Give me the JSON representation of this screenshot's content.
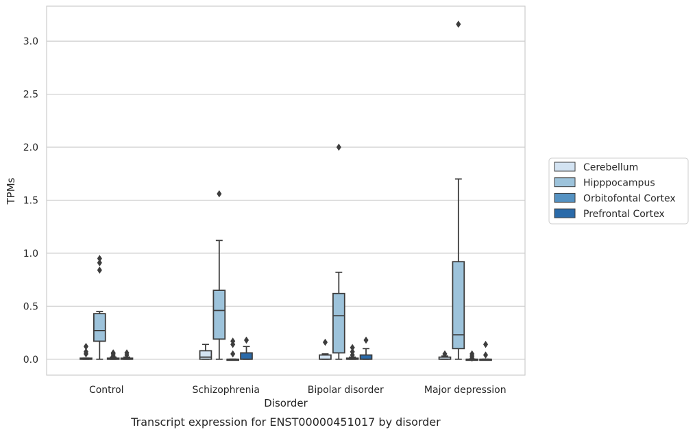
{
  "chart_data": {
    "type": "box",
    "caption": "Transcript expression for ENST00000451017 by disorder",
    "xlabel": "Disorder",
    "ylabel": "TPMs",
    "ylim": [
      -0.15,
      3.33
    ],
    "yticks": [
      0.0,
      0.5,
      1.0,
      1.5,
      2.0,
      2.5,
      3.0
    ],
    "ytick_labels": [
      "0.0",
      "0.5",
      "1.0",
      "1.5",
      "2.0",
      "2.5",
      "3.0"
    ],
    "grid": "horizontal",
    "legend_position": "right",
    "categories": [
      "Control",
      "Schizophrenia",
      "Bipolar disorder",
      "Major depression"
    ],
    "series": [
      {
        "name": "Cerebellum",
        "color": "#d3e3f2",
        "boxes": [
          {
            "q1": 0.0,
            "median": 0.0,
            "q3": 0.01,
            "whisker_low": 0.0,
            "whisker_high": 0.01,
            "outliers": [
              0.05,
              0.07,
              0.12
            ]
          },
          {
            "q1": 0.0,
            "median": 0.02,
            "q3": 0.08,
            "whisker_low": 0.0,
            "whisker_high": 0.14,
            "outliers": []
          },
          {
            "q1": 0.0,
            "median": 0.0,
            "q3": 0.04,
            "whisker_low": 0.0,
            "whisker_high": 0.05,
            "outliers": [
              0.16
            ]
          },
          {
            "q1": 0.0,
            "median": 0.0,
            "q3": 0.02,
            "whisker_low": 0.0,
            "whisker_high": 0.03,
            "outliers": [
              0.05
            ]
          }
        ]
      },
      {
        "name": "Hipppocampus",
        "color": "#9dc3db",
        "boxes": [
          {
            "q1": 0.17,
            "median": 0.27,
            "q3": 0.43,
            "whisker_low": 0.0,
            "whisker_high": 0.45,
            "outliers": [
              0.84,
              0.91,
              0.95
            ]
          },
          {
            "q1": 0.19,
            "median": 0.46,
            "q3": 0.65,
            "whisker_low": 0.0,
            "whisker_high": 1.12,
            "outliers": [
              1.56
            ]
          },
          {
            "q1": 0.06,
            "median": 0.41,
            "q3": 0.62,
            "whisker_low": 0.0,
            "whisker_high": 0.82,
            "outliers": [
              2.0
            ]
          },
          {
            "q1": 0.1,
            "median": 0.23,
            "q3": 0.92,
            "whisker_low": 0.0,
            "whisker_high": 1.7,
            "outliers": [
              3.16
            ]
          }
        ]
      },
      {
        "name": "Orbitofontal Cortex",
        "color": "#5592c2",
        "boxes": [
          {
            "q1": 0.0,
            "median": 0.0,
            "q3": 0.01,
            "whisker_low": 0.0,
            "whisker_high": 0.02,
            "outliers": [
              0.03,
              0.05,
              0.06
            ]
          },
          {
            "q1": 0.0,
            "median": 0.0,
            "q3": 0.0,
            "whisker_low": 0.0,
            "whisker_high": 0.0,
            "outliers": [
              0.05,
              0.14,
              0.17
            ]
          },
          {
            "q1": 0.0,
            "median": 0.0,
            "q3": 0.01,
            "whisker_low": 0.0,
            "whisker_high": 0.02,
            "outliers": [
              0.04,
              0.07,
              0.11
            ]
          },
          {
            "q1": 0.0,
            "median": 0.0,
            "q3": 0.0,
            "whisker_low": 0.0,
            "whisker_high": 0.0,
            "outliers": [
              0.01,
              0.03,
              0.05
            ]
          }
        ]
      },
      {
        "name": "Prefrontal Cortex",
        "color": "#2a6aa9",
        "boxes": [
          {
            "q1": 0.0,
            "median": 0.0,
            "q3": 0.01,
            "whisker_low": 0.0,
            "whisker_high": 0.02,
            "outliers": [
              0.04,
              0.06
            ]
          },
          {
            "q1": 0.0,
            "median": 0.0,
            "q3": 0.06,
            "whisker_low": 0.0,
            "whisker_high": 0.12,
            "outliers": [
              0.18
            ]
          },
          {
            "q1": 0.0,
            "median": 0.0,
            "q3": 0.04,
            "whisker_low": 0.0,
            "whisker_high": 0.1,
            "outliers": [
              0.18
            ]
          },
          {
            "q1": 0.0,
            "median": 0.0,
            "q3": 0.0,
            "whisker_low": 0.0,
            "whisker_high": 0.0,
            "outliers": [
              0.04,
              0.14
            ]
          }
        ]
      }
    ]
  }
}
